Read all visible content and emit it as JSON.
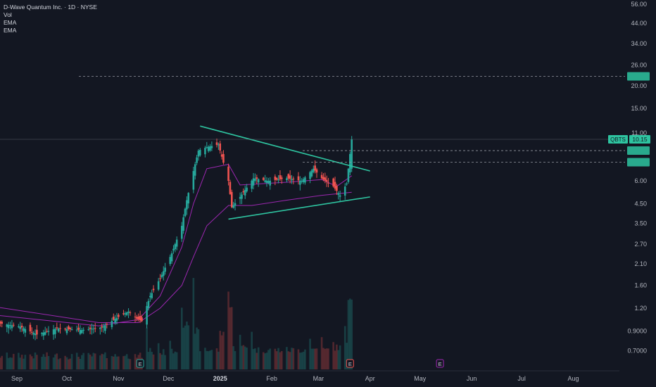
{
  "header": {
    "symbol_line": "D-Wave Quantum Inc. · 1D · NYSE",
    "indicators": [
      "Vol",
      "EMA",
      "EMA"
    ]
  },
  "colors": {
    "background": "#131722",
    "up": "#26a69a",
    "down": "#ef5350",
    "ema_fast": "#9c27b0",
    "ema_slow": "#e91e63",
    "trendline": "#2ec4a0",
    "axis_text": "#b2b5be",
    "event_earnings": "#ef5350",
    "event_dividend": "#9c27b0"
  },
  "chart_data": {
    "type": "candlestick",
    "scale": "log",
    "y_ticks": [
      "56.00",
      "44.00",
      "34.00",
      "26.00",
      "20.00",
      "15.00",
      "11.00",
      "6.00",
      "4.50",
      "3.50",
      "2.70",
      "2.10",
      "1.60",
      "1.20",
      "0.9000",
      "0.7000"
    ],
    "x_ticks": [
      "Sep",
      "Oct",
      "Nov",
      "Dec",
      "2025",
      "Feb",
      "Mar",
      "Apr",
      "May",
      "Jun",
      "Jul",
      "Aug"
    ],
    "last_price": {
      "symbol": "QBTS",
      "value": "10.15"
    },
    "price_levels": [
      22.5,
      8.8,
      7.6
    ],
    "events": [
      {
        "label": "E",
        "date": "Nov"
      },
      {
        "label": "E",
        "date": "Mar"
      },
      {
        "label": "E",
        "date": "May"
      }
    ],
    "trendlines": [
      {
        "from": [
          "Dec 20 2024",
          12.0
        ],
        "to": [
          "Apr 1 2025",
          6.8
        ]
      },
      {
        "from": [
          "Jan 6 2025",
          3.7
        ],
        "to": [
          "Apr 1 2025",
          4.9
        ]
      }
    ],
    "price_path": [
      [
        "Aug 19",
        1.0
      ],
      [
        "Sep 3",
        0.95
      ],
      [
        "Sep 13",
        0.86
      ],
      [
        "Sep 25",
        0.93
      ],
      [
        "Oct 10",
        0.91
      ],
      [
        "Oct 22",
        0.94
      ],
      [
        "Oct 30",
        1.05
      ],
      [
        "Nov 7",
        1.15
      ],
      [
        "Nov 12",
        1.05
      ],
      [
        "Nov 15",
        1.02
      ],
      [
        "Nov 20",
        1.4
      ],
      [
        "Nov 26",
        1.75
      ],
      [
        "Dec 3",
        2.4
      ],
      [
        "Dec 9",
        3.4
      ],
      [
        "Dec 12",
        4.7
      ],
      [
        "Dec 16",
        6.8
      ],
      [
        "Dec 19",
        8.8
      ],
      [
        "Dec 24",
        9.2
      ],
      [
        "Dec 31",
        9.5
      ],
      [
        "Jan 6",
        6.0
      ],
      [
        "Jan 8",
        4.3
      ],
      [
        "Jan 13",
        4.9
      ],
      [
        "Jan 21",
        6.2
      ],
      [
        "Jan 30",
        6.0
      ],
      [
        "Feb 10",
        6.2
      ],
      [
        "Feb 19",
        6.0
      ],
      [
        "Feb 26",
        7.0
      ],
      [
        "Mar 3",
        6.2
      ],
      [
        "Mar 10",
        5.6
      ],
      [
        "Mar 14",
        5.0
      ],
      [
        "Mar 18",
        5.8
      ],
      [
        "Mar 19",
        7.0
      ],
      [
        "Mar 21",
        10.15
      ]
    ],
    "ema_fast": [
      [
        "Aug 19",
        1.1
      ],
      [
        "Oct 20",
        0.96
      ],
      [
        "Nov 13",
        1.04
      ],
      [
        "Nov 26",
        1.4
      ],
      [
        "Dec 9",
        2.6
      ],
      [
        "Dec 16",
        4.5
      ],
      [
        "Dec 24",
        7.0
      ],
      [
        "Jan 6",
        7.4
      ],
      [
        "Jan 13",
        5.7
      ],
      [
        "Feb 10",
        5.9
      ],
      [
        "Mar 3",
        6.1
      ],
      [
        "Mar 12",
        5.6
      ],
      [
        "Mar 21",
        6.4
      ]
    ],
    "ema_slow": [
      [
        "Aug 19",
        1.22
      ],
      [
        "Oct 20",
        1.0
      ],
      [
        "Nov 13",
        1.0
      ],
      [
        "Nov 26",
        1.2
      ],
      [
        "Dec 9",
        1.6
      ],
      [
        "Dec 16",
        2.3
      ],
      [
        "Dec 24",
        3.4
      ],
      [
        "Jan 6",
        4.4
      ],
      [
        "Jan 20",
        4.4
      ],
      [
        "Feb 10",
        4.7
      ],
      [
        "Mar 3",
        5.0
      ],
      [
        "Mar 21",
        5.2
      ]
    ]
  }
}
